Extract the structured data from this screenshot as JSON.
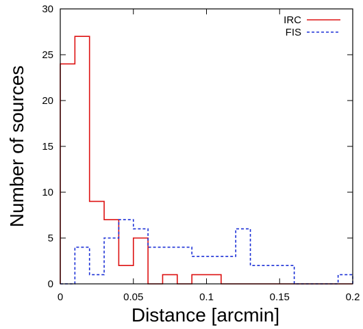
{
  "chart_data": {
    "type": "step-histogram",
    "title": "",
    "xlabel": "Distance [arcmin]",
    "ylabel": "Number of sources",
    "xlim": [
      0,
      0.2
    ],
    "ylim": [
      0,
      30
    ],
    "grid": false,
    "legend": "top-right",
    "bin_width": 0.01,
    "x_ticks": [
      {
        "value": 0,
        "label": "0"
      },
      {
        "value": 0.05,
        "label": "0.05"
      },
      {
        "value": 0.1,
        "label": "0.1"
      },
      {
        "value": 0.15,
        "label": "0.15"
      },
      {
        "value": 0.2,
        "label": "0.2"
      }
    ],
    "y_ticks": [
      {
        "value": 0,
        "label": "0"
      },
      {
        "value": 5,
        "label": "5"
      },
      {
        "value": 10,
        "label": "10"
      },
      {
        "value": 15,
        "label": "15"
      },
      {
        "value": 20,
        "label": "20"
      },
      {
        "value": 25,
        "label": "25"
      },
      {
        "value": 30,
        "label": "30"
      }
    ],
    "bin_edges": [
      0,
      0.01,
      0.02,
      0.03,
      0.04,
      0.05,
      0.06,
      0.07,
      0.08,
      0.09,
      0.1,
      0.11,
      0.12,
      0.13,
      0.14,
      0.15,
      0.16,
      0.17,
      0.18,
      0.19,
      0.2
    ],
    "series": [
      {
        "name": "IRC",
        "color": "#dd1111",
        "dash": "solid",
        "values": [
          24,
          27,
          9,
          7,
          2,
          5,
          0,
          1,
          0,
          1,
          1,
          0,
          0,
          0,
          0,
          0,
          0,
          0,
          0,
          0
        ]
      },
      {
        "name": "FIS",
        "color": "#1a2fd6",
        "dash": "dashed",
        "values": [
          0,
          4,
          1,
          5,
          7,
          6,
          4,
          4,
          4,
          3,
          3,
          3,
          6,
          2,
          2,
          2,
          0,
          0,
          0,
          1
        ]
      }
    ]
  }
}
